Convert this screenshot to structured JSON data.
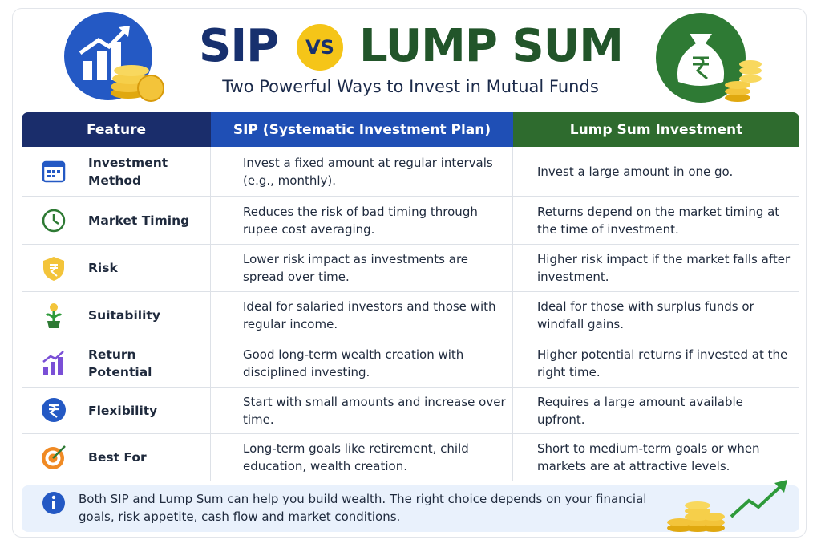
{
  "header": {
    "title_left": "SIP",
    "title_vs": "VS",
    "title_right": "LUMP SUM",
    "subtitle": "Two Powerful Ways to Invest in Mutual Funds"
  },
  "table": {
    "columns": [
      "Feature",
      "SIP (Systematic Investment Plan)",
      "Lump Sum Investment"
    ],
    "rows": [
      [
        "Investment Method",
        "Invest a fixed amount at regular intervals (e.g., monthly).",
        "Invest a large amount in one go."
      ],
      [
        "Market Timing",
        "Reduces the risk of bad timing through rupee cost averaging.",
        "Returns depend on the market timing at the time of investment."
      ],
      [
        "Risk",
        "Lower risk impact as investments are spread over time.",
        "Higher risk impact if the market falls after investment."
      ],
      [
        "Suitability",
        "Ideal for salaried investors and those with regular income.",
        "Ideal for those with surplus funds or windfall gains."
      ],
      [
        "Return Potential",
        "Good long-term wealth creation with disciplined investing.",
        "Higher potential returns if invested at the right time."
      ],
      [
        "Flexibility",
        "Start with small amounts and increase over time.",
        "Requires a large amount available upfront."
      ],
      [
        "Best For",
        "Long-term goals like retirement, child education, wealth creation.",
        "Short to medium-term goals or when markets are at attractive levels."
      ]
    ]
  },
  "footer": {
    "note": "Both SIP and Lump Sum can help you build wealth. The right choice depends on your financial goals, risk appetite, cash flow and market conditions."
  }
}
